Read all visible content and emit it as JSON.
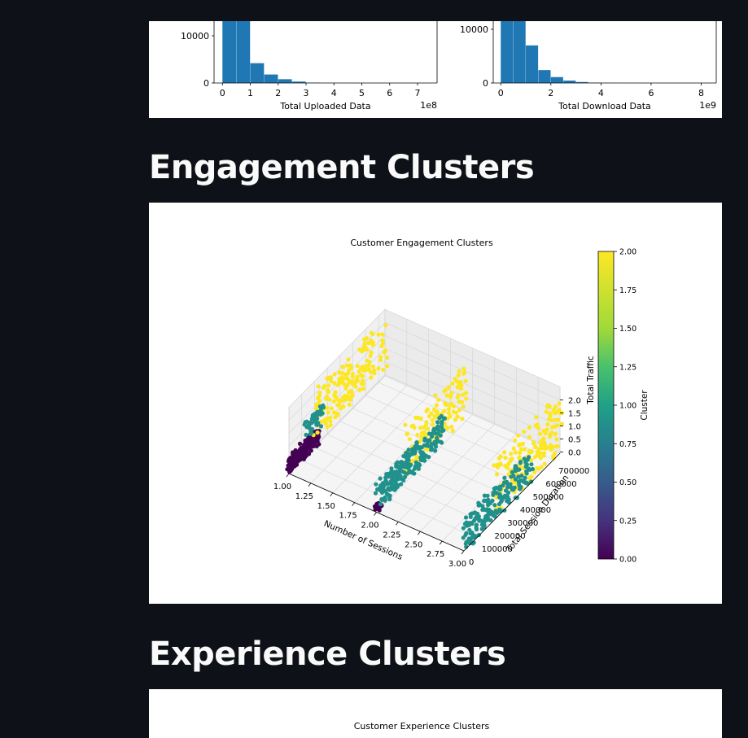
{
  "sections": {
    "engagement_title": "Engagement Clusters",
    "experience_title": "Experience Clusters"
  },
  "chart_data": [
    {
      "type": "bar",
      "xlabel": "Total Uploaded Data",
      "x_offset": "1e8",
      "x_ticks": [
        "0",
        "1",
        "2",
        "3",
        "4",
        "5",
        "6",
        "7"
      ],
      "y_ticks": [
        "0",
        "10000"
      ],
      "bins": [
        0,
        0.5,
        1,
        1.5,
        2,
        2.5,
        3,
        3.5,
        4,
        4.5,
        5,
        5.5,
        6,
        6.5,
        7,
        7.5
      ],
      "counts": [
        22000,
        22000,
        4200,
        1800,
        800,
        300,
        60,
        10,
        2,
        0,
        0,
        0,
        0,
        0,
        0
      ],
      "xlim": [
        -0.3,
        7.7
      ],
      "ylim": [
        0,
        14000
      ],
      "color": "#1f77b4"
    },
    {
      "type": "bar",
      "xlabel": "Total Download Data",
      "x_offset": "1e9",
      "x_ticks": [
        "0",
        "2",
        "4",
        "6",
        "8"
      ],
      "y_ticks": [
        "0",
        "10000"
      ],
      "bins": [
        0,
        0.5,
        1,
        1.5,
        2,
        2.5,
        3,
        3.5,
        4,
        4.5,
        5,
        5.5,
        6,
        6.5,
        7,
        7.5,
        8,
        8.5
      ],
      "counts": [
        22000,
        22000,
        7000,
        2400,
        1100,
        450,
        180,
        60,
        20,
        8,
        3,
        0,
        0,
        0,
        0,
        0,
        0
      ],
      "xlim": [
        -0.3,
        8.6
      ],
      "ylim": [
        0,
        14000
      ],
      "color": "#1f77b4"
    },
    {
      "type": "scatter",
      "title": "Customer Engagement Clusters",
      "xlabel": "Number of Sessions",
      "ylabel": "Total Session Duration",
      "zlabel": "Total Traffic",
      "x_ticks": [
        "1.00",
        "1.25",
        "1.50",
        "1.75",
        "2.00",
        "2.25",
        "2.50",
        "2.75",
        "3.00"
      ],
      "y_ticks": [
        "0",
        "100000",
        "200000",
        "300000",
        "400000",
        "500000",
        "600000",
        "700000"
      ],
      "z_ticks": [
        "0.0",
        "0.5",
        "1.0",
        "1.5",
        "2.0"
      ],
      "colorbar_label": "Cluster",
      "colorbar_ticks": [
        "0.00",
        "0.25",
        "0.50",
        "0.75",
        "1.00",
        "1.25",
        "1.50",
        "1.75",
        "2.00"
      ],
      "clusters": [
        {
          "cluster": 0,
          "color": "#440154",
          "sessions": [
            1,
            2
          ],
          "duration": [
            0,
            250000
          ],
          "traffic": [
            0.0,
            0.6
          ]
        },
        {
          "cluster": 1,
          "color": "#21918c",
          "sessions": [
            1,
            2,
            3
          ],
          "duration": [
            0,
            700000
          ],
          "traffic": [
            0.0,
            1.3
          ]
        },
        {
          "cluster": 2,
          "color": "#fde725",
          "sessions": [
            1,
            2,
            3
          ],
          "duration": [
            100000,
            750000
          ],
          "traffic": [
            0.3,
            2.2
          ]
        }
      ]
    },
    {
      "type": "scatter",
      "title": "Customer Experience Clusters"
    }
  ]
}
